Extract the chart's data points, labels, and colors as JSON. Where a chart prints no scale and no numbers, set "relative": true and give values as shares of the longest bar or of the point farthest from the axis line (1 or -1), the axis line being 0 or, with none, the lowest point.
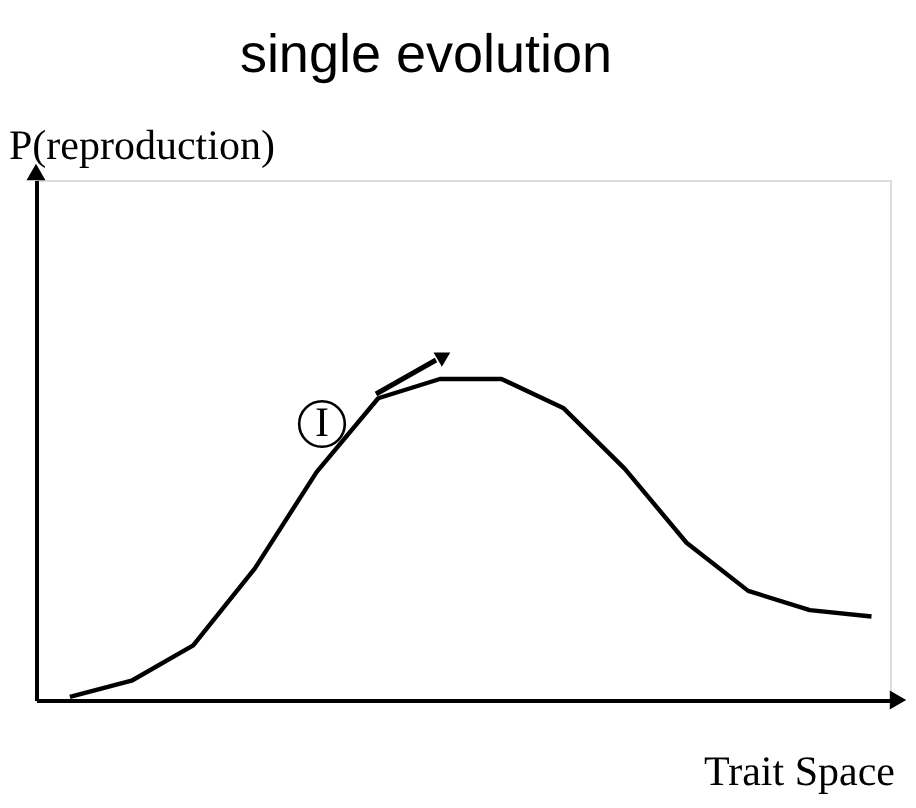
{
  "chart_data": {
    "type": "line",
    "title": "single evolution",
    "ylabel": "P(reproduction)",
    "xlabel": "Trait Space",
    "relative": true,
    "tick_labels": false,
    "grid": false,
    "marker": "none",
    "line_style": "solid",
    "categories": [
      null,
      null,
      null,
      null,
      null,
      null,
      null,
      null,
      null,
      null,
      null,
      null,
      null,
      null
    ],
    "series": [
      {
        "color": "#000000",
        "values": [
          0.01,
          0.06,
          0.17,
          0.41,
          0.71,
          0.94,
          1,
          1,
          0.91,
          0.72,
          0.49,
          0.34,
          0.28,
          0.26
        ]
      }
    ],
    "annotations": [
      "I"
    ]
  }
}
